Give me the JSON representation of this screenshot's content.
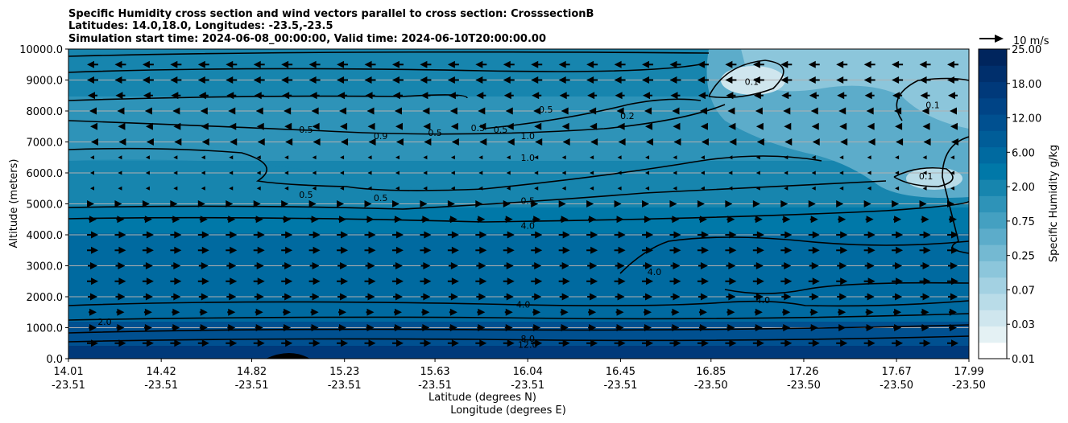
{
  "chart_data": {
    "type": "heatmap",
    "title_lines": [
      "Specific Humidity cross section and wind vectors parallel to cross section: CrosssectionB",
      "Latitudes: 14.0,18.0, Longitudes: -23.5,-23.5",
      "Simulation start time: 2024-06-08_00:00:00, Valid time: 2024-06-10T20:00:00.00"
    ],
    "ylabel": "Altitude (meters)",
    "xlabel_lines": [
      "Latitude (degrees N)",
      "Longitude (degrees E)"
    ],
    "x_ticks": [
      {
        "lat": "14.01",
        "lon": "-23.51"
      },
      {
        "lat": "14.42",
        "lon": "-23.51"
      },
      {
        "lat": "14.82",
        "lon": "-23.51"
      },
      {
        "lat": "15.23",
        "lon": "-23.51"
      },
      {
        "lat": "15.63",
        "lon": "-23.51"
      },
      {
        "lat": "16.04",
        "lon": "-23.51"
      },
      {
        "lat": "16.45",
        "lon": "-23.51"
      },
      {
        "lat": "16.85",
        "lon": "-23.50"
      },
      {
        "lat": "17.26",
        "lon": "-23.50"
      },
      {
        "lat": "17.67",
        "lon": "-23.50"
      },
      {
        "lat": "17.99",
        "lon": "-23.50"
      }
    ],
    "y_ticks": [
      "0.0",
      "1000.0",
      "2000.0",
      "3000.0",
      "4000.0",
      "5000.0",
      "6000.0",
      "7000.0",
      "8000.0",
      "9000.0",
      "10000.0"
    ],
    "ylim": [
      0,
      10000
    ],
    "xlim": [
      14.01,
      17.99
    ],
    "grid": "horizontal",
    "colorbar": {
      "label": "Specific Humidity g/kg",
      "tick_labels": [
        "0.01",
        "0.03",
        "0.07",
        "0.25",
        "0.75",
        "2.00",
        "6.00",
        "12.00",
        "18.00",
        "25.00"
      ],
      "levels": [
        0.01,
        0.02,
        0.03,
        0.05,
        0.07,
        0.1,
        0.25,
        0.5,
        0.75,
        1.0,
        2.0,
        4.0,
        6.0,
        8.0,
        12.0,
        15.0,
        18.0,
        21.0,
        25.0
      ],
      "colors": [
        "#ffffff",
        "#e4f1f4",
        "#cfe6ee",
        "#b9dce8",
        "#a3d1e2",
        "#8cc6db",
        "#74b9d2",
        "#5cacca",
        "#44a0c1",
        "#2e93b8",
        "#1785ae",
        "#0078a8",
        "#006aa0",
        "#005d98",
        "#005090",
        "#004486",
        "#00397a",
        "#002f6c",
        "#00255d"
      ]
    },
    "wind_legend": "10 m/s",
    "contour_labels": [
      {
        "text": "12.0",
        "x": 16.04,
        "y": 450
      },
      {
        "text": "8.0",
        "x": 16.04,
        "y": 650
      },
      {
        "text": "4.0",
        "x": 16.02,
        "y": 1750
      },
      {
        "text": "4.0",
        "x": 16.04,
        "y": 4300
      },
      {
        "text": "0.5",
        "x": 16.04,
        "y": 5100
      },
      {
        "text": "1.0",
        "x": 16.04,
        "y": 6500
      },
      {
        "text": "1.0",
        "x": 16.04,
        "y": 7200
      },
      {
        "text": "0.5",
        "x": 15.82,
        "y": 7450
      },
      {
        "text": "0.5",
        "x": 16.12,
        "y": 8050
      },
      {
        "text": "0.2",
        "x": 16.48,
        "y": 7850
      },
      {
        "text": "0.1",
        "x": 17.03,
        "y": 8950
      },
      {
        "text": "0.1",
        "x": 17.83,
        "y": 8200
      },
      {
        "text": "0.1",
        "x": 17.8,
        "y": 5900
      },
      {
        "text": "4.0",
        "x": 16.6,
        "y": 2800
      },
      {
        "text": "4.0",
        "x": 17.08,
        "y": 1900
      },
      {
        "text": "0.5",
        "x": 15.06,
        "y": 5300
      },
      {
        "text": "0.5",
        "x": 15.39,
        "y": 5200
      },
      {
        "text": "0.5",
        "x": 15.06,
        "y": 7400
      },
      {
        "text": "0.9",
        "x": 15.39,
        "y": 7200
      },
      {
        "text": "0.5",
        "x": 15.63,
        "y": 7300
      },
      {
        "text": "0.5",
        "x": 15.92,
        "y": 7400
      },
      {
        "text": "2.0",
        "x": 14.17,
        "y": 1200
      }
    ],
    "wind_rows": [
      {
        "altitude": 9500,
        "u": -7
      },
      {
        "altitude": 9000,
        "u": -7
      },
      {
        "altitude": 8500,
        "u": -6
      },
      {
        "altitude": 8000,
        "u": -4
      },
      {
        "altitude": 7500,
        "u": -3
      },
      {
        "altitude": 7000,
        "u": -2
      },
      {
        "altitude": 6500,
        "u": -1
      },
      {
        "altitude": 6000,
        "u": -1
      },
      {
        "altitude": 5500,
        "u": -1
      },
      {
        "altitude": 5000,
        "u": 2
      },
      {
        "altitude": 4500,
        "u": 5
      },
      {
        "altitude": 4000,
        "u": 7
      },
      {
        "altitude": 3500,
        "u": 7
      },
      {
        "altitude": 3000,
        "u": 6
      },
      {
        "altitude": 2500,
        "u": 7
      },
      {
        "altitude": 2000,
        "u": 6
      },
      {
        "altitude": 1500,
        "u": 5
      },
      {
        "altitude": 1000,
        "u": 5
      },
      {
        "altitude": 500,
        "u": 7
      }
    ]
  }
}
